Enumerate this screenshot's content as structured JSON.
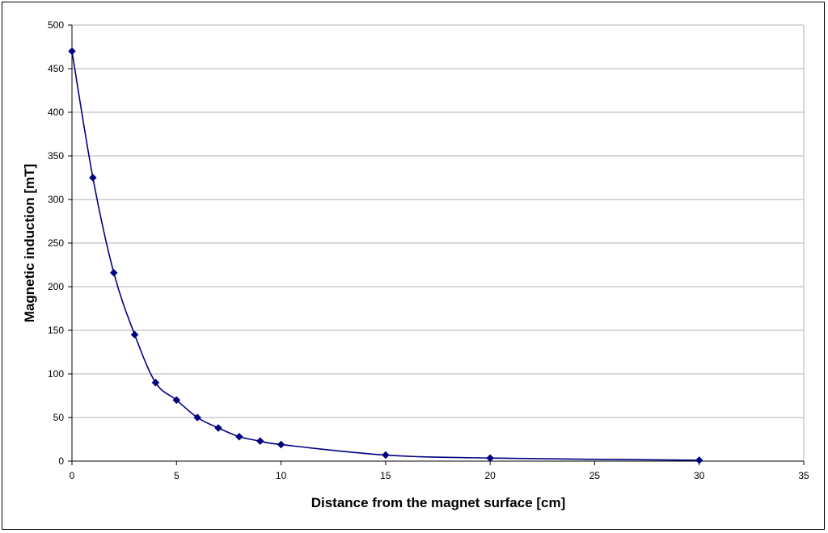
{
  "chart_data": {
    "type": "line",
    "title": "",
    "xlabel": "Distance from the magnet surface [cm]",
    "ylabel": "Magnetic induction [mT]",
    "xlim": [
      0,
      35
    ],
    "ylim": [
      0,
      500
    ],
    "xticks": [
      0,
      5,
      10,
      15,
      20,
      25,
      30,
      35
    ],
    "yticks": [
      0,
      50,
      100,
      150,
      200,
      250,
      300,
      350,
      400,
      450,
      500
    ],
    "grid": "horizontal",
    "smooth": true,
    "marker": "diamond",
    "color": "#000080",
    "series": [
      {
        "x": [
          0,
          1,
          2,
          3,
          4,
          5,
          6,
          7,
          8,
          9,
          10,
          15,
          20,
          30
        ],
        "y": [
          470,
          325,
          216,
          145,
          90,
          70,
          50,
          38,
          28,
          23,
          19,
          7,
          3.5,
          1
        ]
      }
    ]
  }
}
